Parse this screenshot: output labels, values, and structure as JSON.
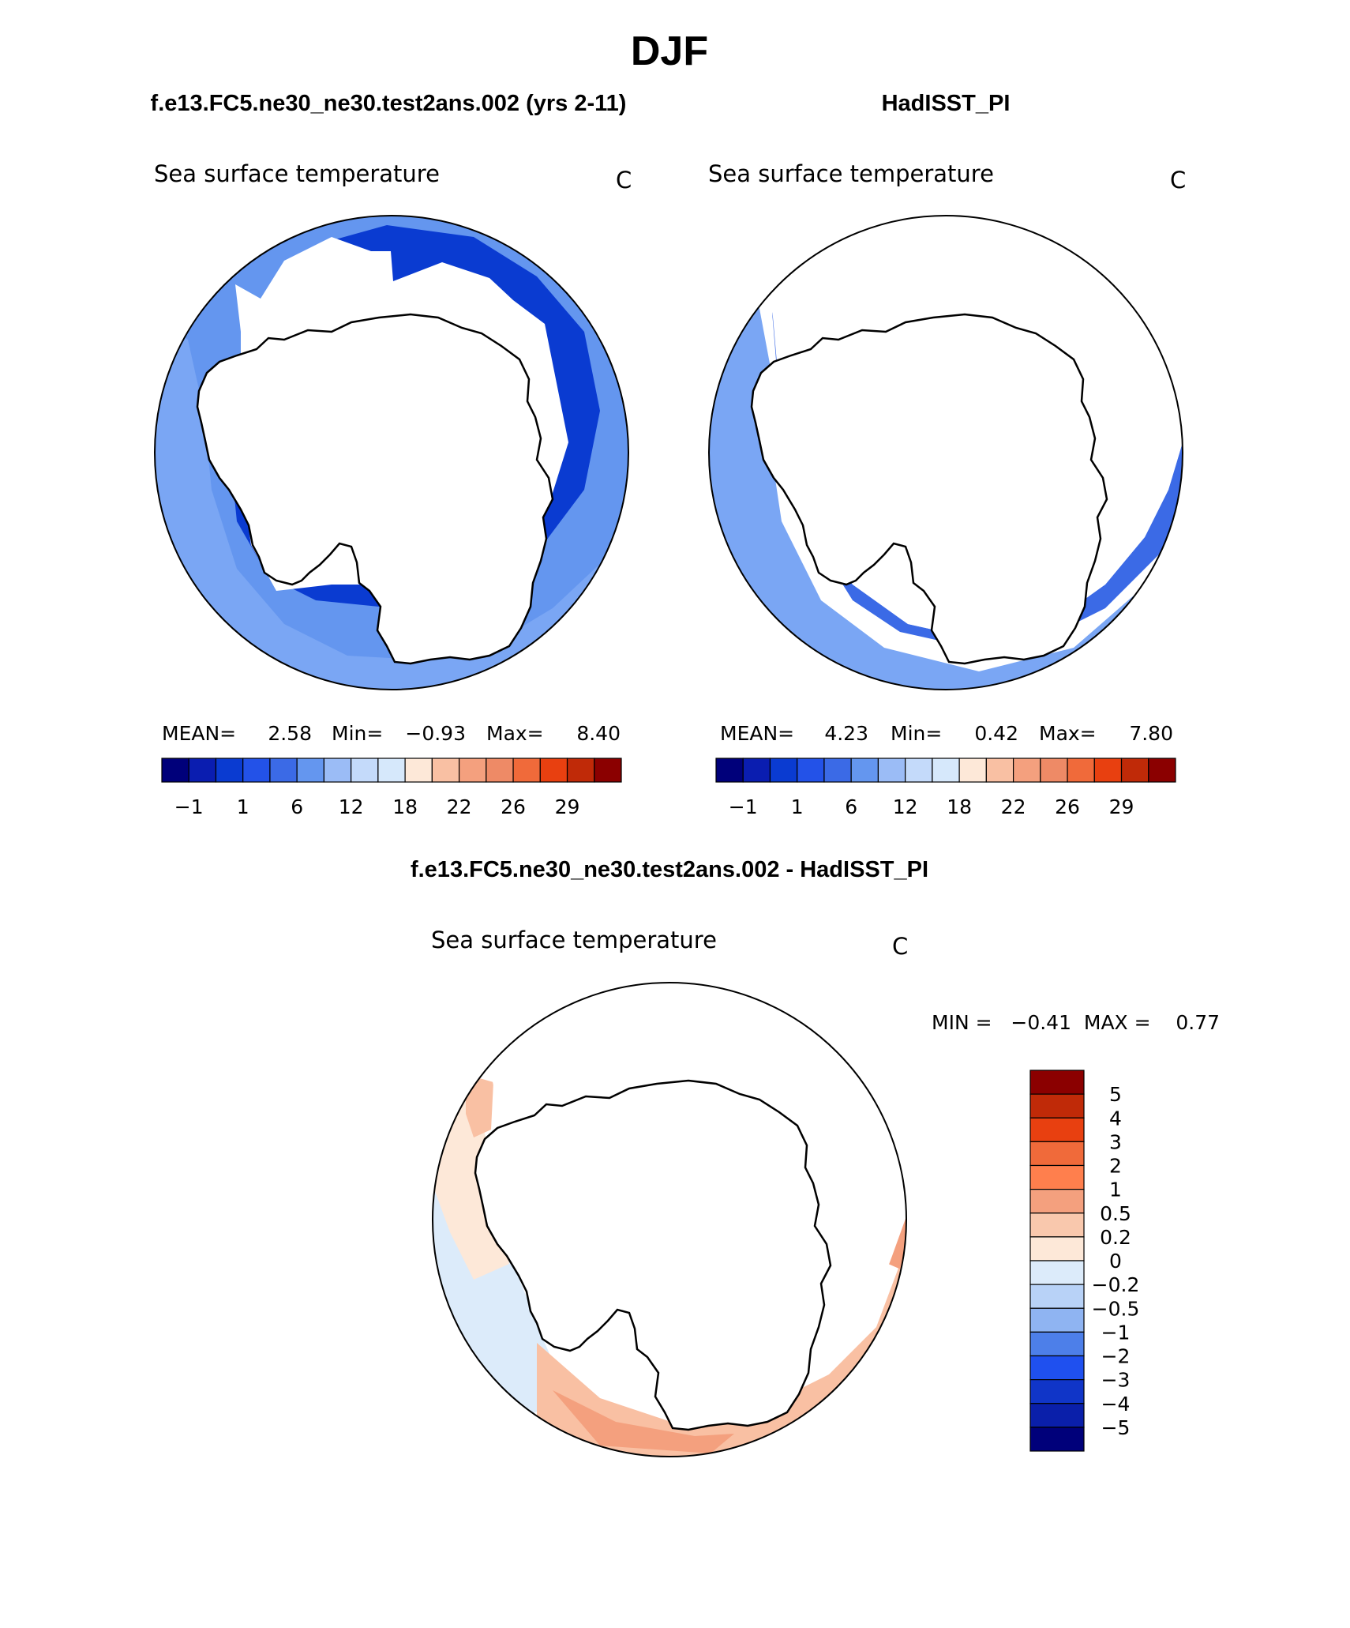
{
  "page": {
    "title": "DJF"
  },
  "colors": {
    "land": "#ffffff",
    "outline": "#000000",
    "deep_blue_2": "#0a3bd1",
    "blue_3": "#2352e8",
    "blue_4": "#3b6ae6",
    "blue_5": "#6496ef",
    "light_blue": "#7aa6f4",
    "very_light_blue": "#d6e8fb",
    "cream": "#fde8d8",
    "peach": "#f9c0a3",
    "salmon": "#f4a07e",
    "orange": "#ee8a66"
  },
  "panels": [
    {
      "id": "model",
      "heading": "f.e13.FC5.ne30_ne30.test2ans.002 (yrs 2-11)",
      "variable": "Sea surface temperature",
      "units": "C",
      "stats": {
        "mean_label": "MEAN=",
        "mean": "2.58",
        "min_label": "Min=",
        "min": "−0.93",
        "max_label": "Max=",
        "max": "8.40"
      }
    },
    {
      "id": "obs",
      "heading": "HadISST_PI",
      "variable": "Sea surface temperature",
      "units": "C",
      "stats": {
        "mean_label": "MEAN=",
        "mean": "4.23",
        "min_label": "Min=",
        "min": "0.42",
        "max_label": "Max=",
        "max": "7.80"
      }
    }
  ],
  "abs_colorbar": {
    "colors": [
      "#00007a",
      "#0a1db0",
      "#0a3bd1",
      "#2352e8",
      "#3b6ae6",
      "#6496ef",
      "#9bbcf6",
      "#c4dafa",
      "#d6e8fb",
      "#fde8d8",
      "#f9c0a3",
      "#f4a07e",
      "#ee8a66",
      "#f06a3a",
      "#e84010",
      "#c02a08",
      "#8b0000"
    ],
    "ticks": [
      "−1",
      "1",
      "6",
      "12",
      "18",
      "22",
      "26",
      "29"
    ]
  },
  "diff": {
    "heading": "f.e13.FC5.ne30_ne30.test2ans.002 - HadISST_PI",
    "variable": "Sea surface temperature",
    "units": "C",
    "minmax": "MIN =   −0.41  MAX =    0.77",
    "colorbar": {
      "colors": [
        "#8b0000",
        "#c02a08",
        "#e84010",
        "#f06a3a",
        "#ff7f4d",
        "#f4a07e",
        "#f9c8ad",
        "#fde8d8",
        "#dcebfa",
        "#b8d2f7",
        "#8fb4f2",
        "#4d7fe9",
        "#1f50ef",
        "#1035c8",
        "#0a1faa",
        "#00007a"
      ],
      "labels": [
        "5",
        "4",
        "3",
        "2",
        "1",
        "0.5",
        "0.2",
        "0",
        "−0.2",
        "−0.5",
        "−1",
        "−2",
        "−3",
        "−4",
        "−5"
      ]
    }
  }
}
